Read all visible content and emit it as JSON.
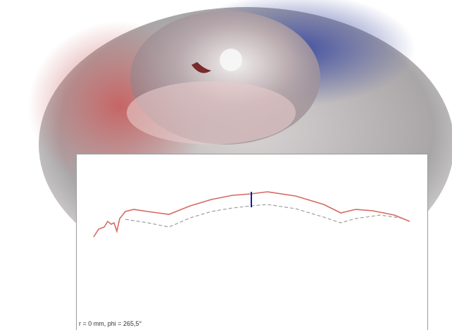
{
  "caption": "r = 0 mm, phi = 265,5°"
}
